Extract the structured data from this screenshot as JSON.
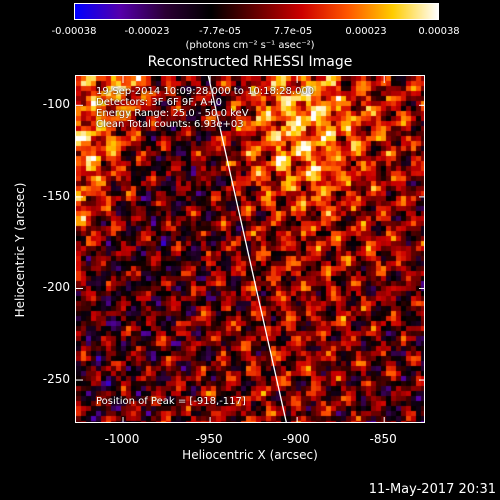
{
  "colorbar": {
    "tick_labels": [
      "-0.00038",
      "-0.00023",
      "-7.7e-05",
      "7.7e-05",
      "0.00023",
      "0.00038"
    ],
    "unit_label": "(photons cm⁻² s⁻¹ asec⁻²)"
  },
  "title": "Reconstructed RHESSI Image",
  "annotations": {
    "time": "19-Sep-2014 10:09:28.000 to 10:18:28.000",
    "detectors": "Detectors: 3F 6F 9F, A+0",
    "energy": "Energy Range: 25.0 - 50.0 keV",
    "clean": "Clean     Total counts: 6.93e+03",
    "peak": "Position of Peak = [-918,-117]"
  },
  "footer": "11-May-2017 20:31",
  "chart_data": {
    "type": "heatmap",
    "title": "Reconstructed RHESSI Image",
    "xlabel": "Heliocentric X (arcsec)",
    "ylabel": "Heliocentric Y (arcsec)",
    "xlim": [
      -1027,
      -826
    ],
    "ylim": [
      -274,
      -84
    ],
    "x_ticks": [
      "-1000",
      "-950",
      "-900",
      "-850"
    ],
    "y_ticks": [
      "-100",
      "-150",
      "-200",
      "-250"
    ],
    "x_tick_values": [
      -1000,
      -950,
      -900,
      -850
    ],
    "y_tick_values": [
      -100,
      -150,
      -200,
      -250
    ],
    "colorbar_range": [
      -0.00038,
      0.00038
    ],
    "colormap": [
      "#0000ff",
      "#5500aa",
      "#2a0033",
      "#000000",
      "#660000",
      "#cc0000",
      "#ff5500",
      "#ffcc00",
      "#ffffff"
    ],
    "limb_line": {
      "x": [
        -951,
        -906
      ],
      "y": [
        -84,
        -274
      ],
      "color": "#ffffff"
    },
    "peak_position": [
      -918,
      -117
    ]
  }
}
